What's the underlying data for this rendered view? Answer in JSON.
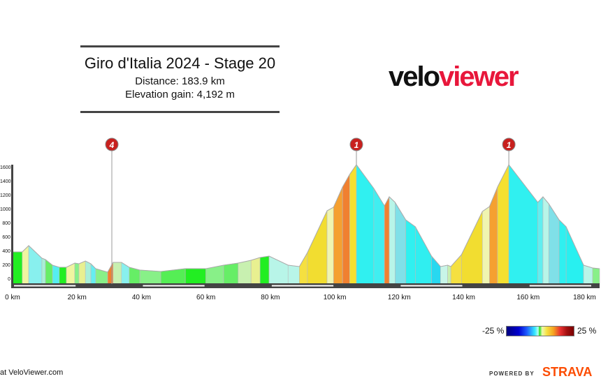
{
  "header": {
    "title": "Giro d'Italia 2024 - Stage 20",
    "distance": "Distance: 183.9 km",
    "elevation_gain": "Elevation gain: 4,192 m"
  },
  "logo": {
    "part1": "velo",
    "part2": "viewer",
    "accent": "#e8173b"
  },
  "legend": {
    "min_label": "-25 %",
    "max_label": "25 %"
  },
  "footer": {
    "credit": "at VeloViewer.com",
    "powered_by": "POWERED BY",
    "brand": "STRAVA",
    "brand_color": "#fc4c02"
  },
  "chart_data": {
    "type": "area",
    "xlabel": "",
    "ylabel": "",
    "xlim": [
      0,
      183.9
    ],
    "ylim": [
      0,
      1800
    ],
    "x_ticks": [
      "0 km",
      "20 km",
      "40 km",
      "60 km",
      "80 km",
      "100 km",
      "120 km",
      "140 km",
      "160 km",
      "180 km"
    ],
    "x_tick_values": [
      0,
      20,
      40,
      60,
      80,
      100,
      120,
      140,
      160,
      180
    ],
    "y_ticks": [
      "0",
      "200",
      "400",
      "600",
      "800",
      "1000",
      "1200",
      "1400",
      "1600"
    ],
    "y_tick_values": [
      0,
      200,
      400,
      600,
      800,
      1000,
      1200,
      1400,
      1600
    ],
    "profile": [
      {
        "km": 0,
        "elev": 410,
        "color": "#22ee22"
      },
      {
        "km": 3,
        "elev": 410,
        "color": "#f0f5a0"
      },
      {
        "km": 5,
        "elev": 500,
        "color": "#88f0ee"
      },
      {
        "km": 9.1,
        "elev": 320,
        "color": "#a8f0d8"
      },
      {
        "km": 10.2,
        "elev": 300,
        "color": "#66ee66"
      },
      {
        "km": 12.4,
        "elev": 220,
        "color": "#55eef0"
      },
      {
        "km": 14.5,
        "elev": 190,
        "color": "#22ee22"
      },
      {
        "km": 16.7,
        "elev": 190,
        "color": "#f0f5a0"
      },
      {
        "km": 19.3,
        "elev": 250,
        "color": "#88f088"
      },
      {
        "km": 20.6,
        "elev": 240,
        "color": "#e8f090"
      },
      {
        "km": 22.6,
        "elev": 280,
        "color": "#a8f0d8"
      },
      {
        "km": 24.3,
        "elev": 240,
        "color": "#66eef0"
      },
      {
        "km": 25.8,
        "elev": 170,
        "color": "#88f088"
      },
      {
        "km": 29.5,
        "elev": 120,
        "color": "#f08030"
      },
      {
        "km": 31.2,
        "elev": 260,
        "color": "#c8f0b0"
      },
      {
        "km": 33.8,
        "elev": 260,
        "color": "#88f0ee"
      },
      {
        "km": 36.2,
        "elev": 190,
        "color": "#66ee66"
      },
      {
        "km": 39.5,
        "elev": 150,
        "color": "#88f088"
      },
      {
        "km": 46,
        "elev": 130,
        "color": "#55ee55"
      },
      {
        "km": 53.6,
        "elev": 170,
        "color": "#22ee22"
      },
      {
        "km": 60,
        "elev": 170,
        "color": "#88f088"
      },
      {
        "km": 65.5,
        "elev": 220,
        "color": "#66ee66"
      },
      {
        "km": 70,
        "elev": 250,
        "color": "#c8f0b0"
      },
      {
        "km": 74,
        "elev": 290,
        "color": "#e8f090"
      },
      {
        "km": 76.8,
        "elev": 330,
        "color": "#22ee22"
      },
      {
        "km": 79.6,
        "elev": 350,
        "color": "#b8f5e8"
      },
      {
        "km": 85.5,
        "elev": 220,
        "color": "#b8f5e8"
      },
      {
        "km": 89,
        "elev": 200,
        "color": "#f5e040"
      },
      {
        "km": 91.5,
        "elev": 400,
        "color": "#f2dd30"
      },
      {
        "km": 97.6,
        "elev": 1000,
        "color": "#f0f5b0"
      },
      {
        "km": 99.6,
        "elev": 1050,
        "color": "#f5a030"
      },
      {
        "km": 102.4,
        "elev": 1340,
        "color": "#f08030"
      },
      {
        "km": 104.6,
        "elev": 1520,
        "color": "#f5e030"
      },
      {
        "km": 106.7,
        "elev": 1660,
        "color": "#30f0f0"
      },
      {
        "km": 112.1,
        "elev": 1320,
        "color": "#40eef0"
      },
      {
        "km": 115.4,
        "elev": 1070,
        "color": "#f08030"
      },
      {
        "km": 116.9,
        "elev": 1200,
        "color": "#b8f5e8"
      },
      {
        "km": 118.7,
        "elev": 1120,
        "color": "#80e0e8"
      },
      {
        "km": 122,
        "elev": 870,
        "color": "#30f0f0"
      },
      {
        "km": 125,
        "elev": 770,
        "color": "#30eef0"
      },
      {
        "km": 130,
        "elev": 350,
        "color": "#28d8f0"
      },
      {
        "km": 132.8,
        "elev": 200,
        "color": "#c8f5e8"
      },
      {
        "km": 135,
        "elev": 220,
        "color": "#c8f0b0"
      },
      {
        "km": 136,
        "elev": 200,
        "color": "#f5e040"
      },
      {
        "km": 139.3,
        "elev": 370,
        "color": "#f2dd30"
      },
      {
        "km": 145.8,
        "elev": 990,
        "color": "#f0f5b0"
      },
      {
        "km": 148,
        "elev": 1060,
        "color": "#f5a030"
      },
      {
        "km": 150.5,
        "elev": 1340,
        "color": "#f5e030"
      },
      {
        "km": 154,
        "elev": 1660,
        "color": "#30f0f0"
      },
      {
        "km": 163,
        "elev": 1120,
        "color": "#60eef0"
      },
      {
        "km": 164.6,
        "elev": 1200,
        "color": "#b8f5e8"
      },
      {
        "km": 166.4,
        "elev": 1100,
        "color": "#80e0e8"
      },
      {
        "km": 169.6,
        "elev": 870,
        "color": "#30f0f0"
      },
      {
        "km": 171.8,
        "elev": 770,
        "color": "#28f0f0"
      },
      {
        "km": 177.2,
        "elev": 220,
        "color": "#b8f5e8"
      },
      {
        "km": 180,
        "elev": 180,
        "color": "#88f088"
      },
      {
        "km": 183.9,
        "elev": 170,
        "color": "#88f088"
      }
    ],
    "climbs": [
      {
        "km": 30.8,
        "category": "4"
      },
      {
        "km": 106.7,
        "category": "1"
      },
      {
        "km": 154,
        "category": "1"
      }
    ],
    "legend": "gradient color scale bottom-right"
  }
}
